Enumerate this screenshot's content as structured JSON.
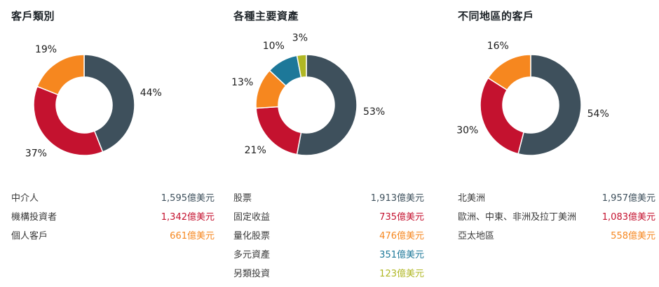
{
  "unit": "億美元",
  "chart_data": [
    {
      "type": "pie",
      "donut": true,
      "title": "客戶類別",
      "start_angle": "top",
      "direction": "clockwise",
      "legend_position": "bottom",
      "slices": [
        {
          "label": "中介人",
          "pct": 44,
          "pct_text": "44%",
          "value": 1595,
          "value_text": "1,595億美元",
          "color": "#3e505c"
        },
        {
          "label": "機構投資者",
          "pct": 37,
          "pct_text": "37%",
          "value": 1342,
          "value_text": "1,342億美元",
          "color": "#c4122f"
        },
        {
          "label": "個人客戶",
          "pct": 19,
          "pct_text": "19%",
          "value": 661,
          "value_text": "661億美元",
          "color": "#f6871f"
        }
      ]
    },
    {
      "type": "pie",
      "donut": true,
      "title": "各種主要資產",
      "start_angle": "top",
      "direction": "clockwise",
      "legend_position": "bottom",
      "slices": [
        {
          "label": "股票",
          "pct": 53,
          "pct_text": "53%",
          "value": 1913,
          "value_text": "1,913億美元",
          "color": "#3e505c"
        },
        {
          "label": "固定收益",
          "pct": 21,
          "pct_text": "21%",
          "value": 735,
          "value_text": "735億美元",
          "color": "#c4122f"
        },
        {
          "label": "量化股票",
          "pct": 13,
          "pct_text": "13%",
          "value": 476,
          "value_text": "476億美元",
          "color": "#f6871f"
        },
        {
          "label": "多元資產",
          "pct": 10,
          "pct_text": "10%",
          "value": 351,
          "value_text": "351億美元",
          "color": "#1d7899"
        },
        {
          "label": "另類投資",
          "pct": 3,
          "pct_text": "3%",
          "value": 123,
          "value_text": "123億美元",
          "color": "#b0b724"
        }
      ]
    },
    {
      "type": "pie",
      "donut": true,
      "title": "不同地區的客戶",
      "start_angle": "top",
      "direction": "clockwise",
      "legend_position": "bottom",
      "slices": [
        {
          "label": "北美洲",
          "pct": 54,
          "pct_text": "54%",
          "value": 1957,
          "value_text": "1,957億美元",
          "color": "#3e505c"
        },
        {
          "label": "歐洲、中東、非洲及拉丁美洲",
          "pct": 30,
          "pct_text": "30%",
          "value": 1083,
          "value_text": "1,083億美元",
          "color": "#c4122f"
        },
        {
          "label": "亞太地區",
          "pct": 16,
          "pct_text": "16%",
          "value": 558,
          "value_text": "558億美元",
          "color": "#f6871f"
        }
      ]
    }
  ]
}
